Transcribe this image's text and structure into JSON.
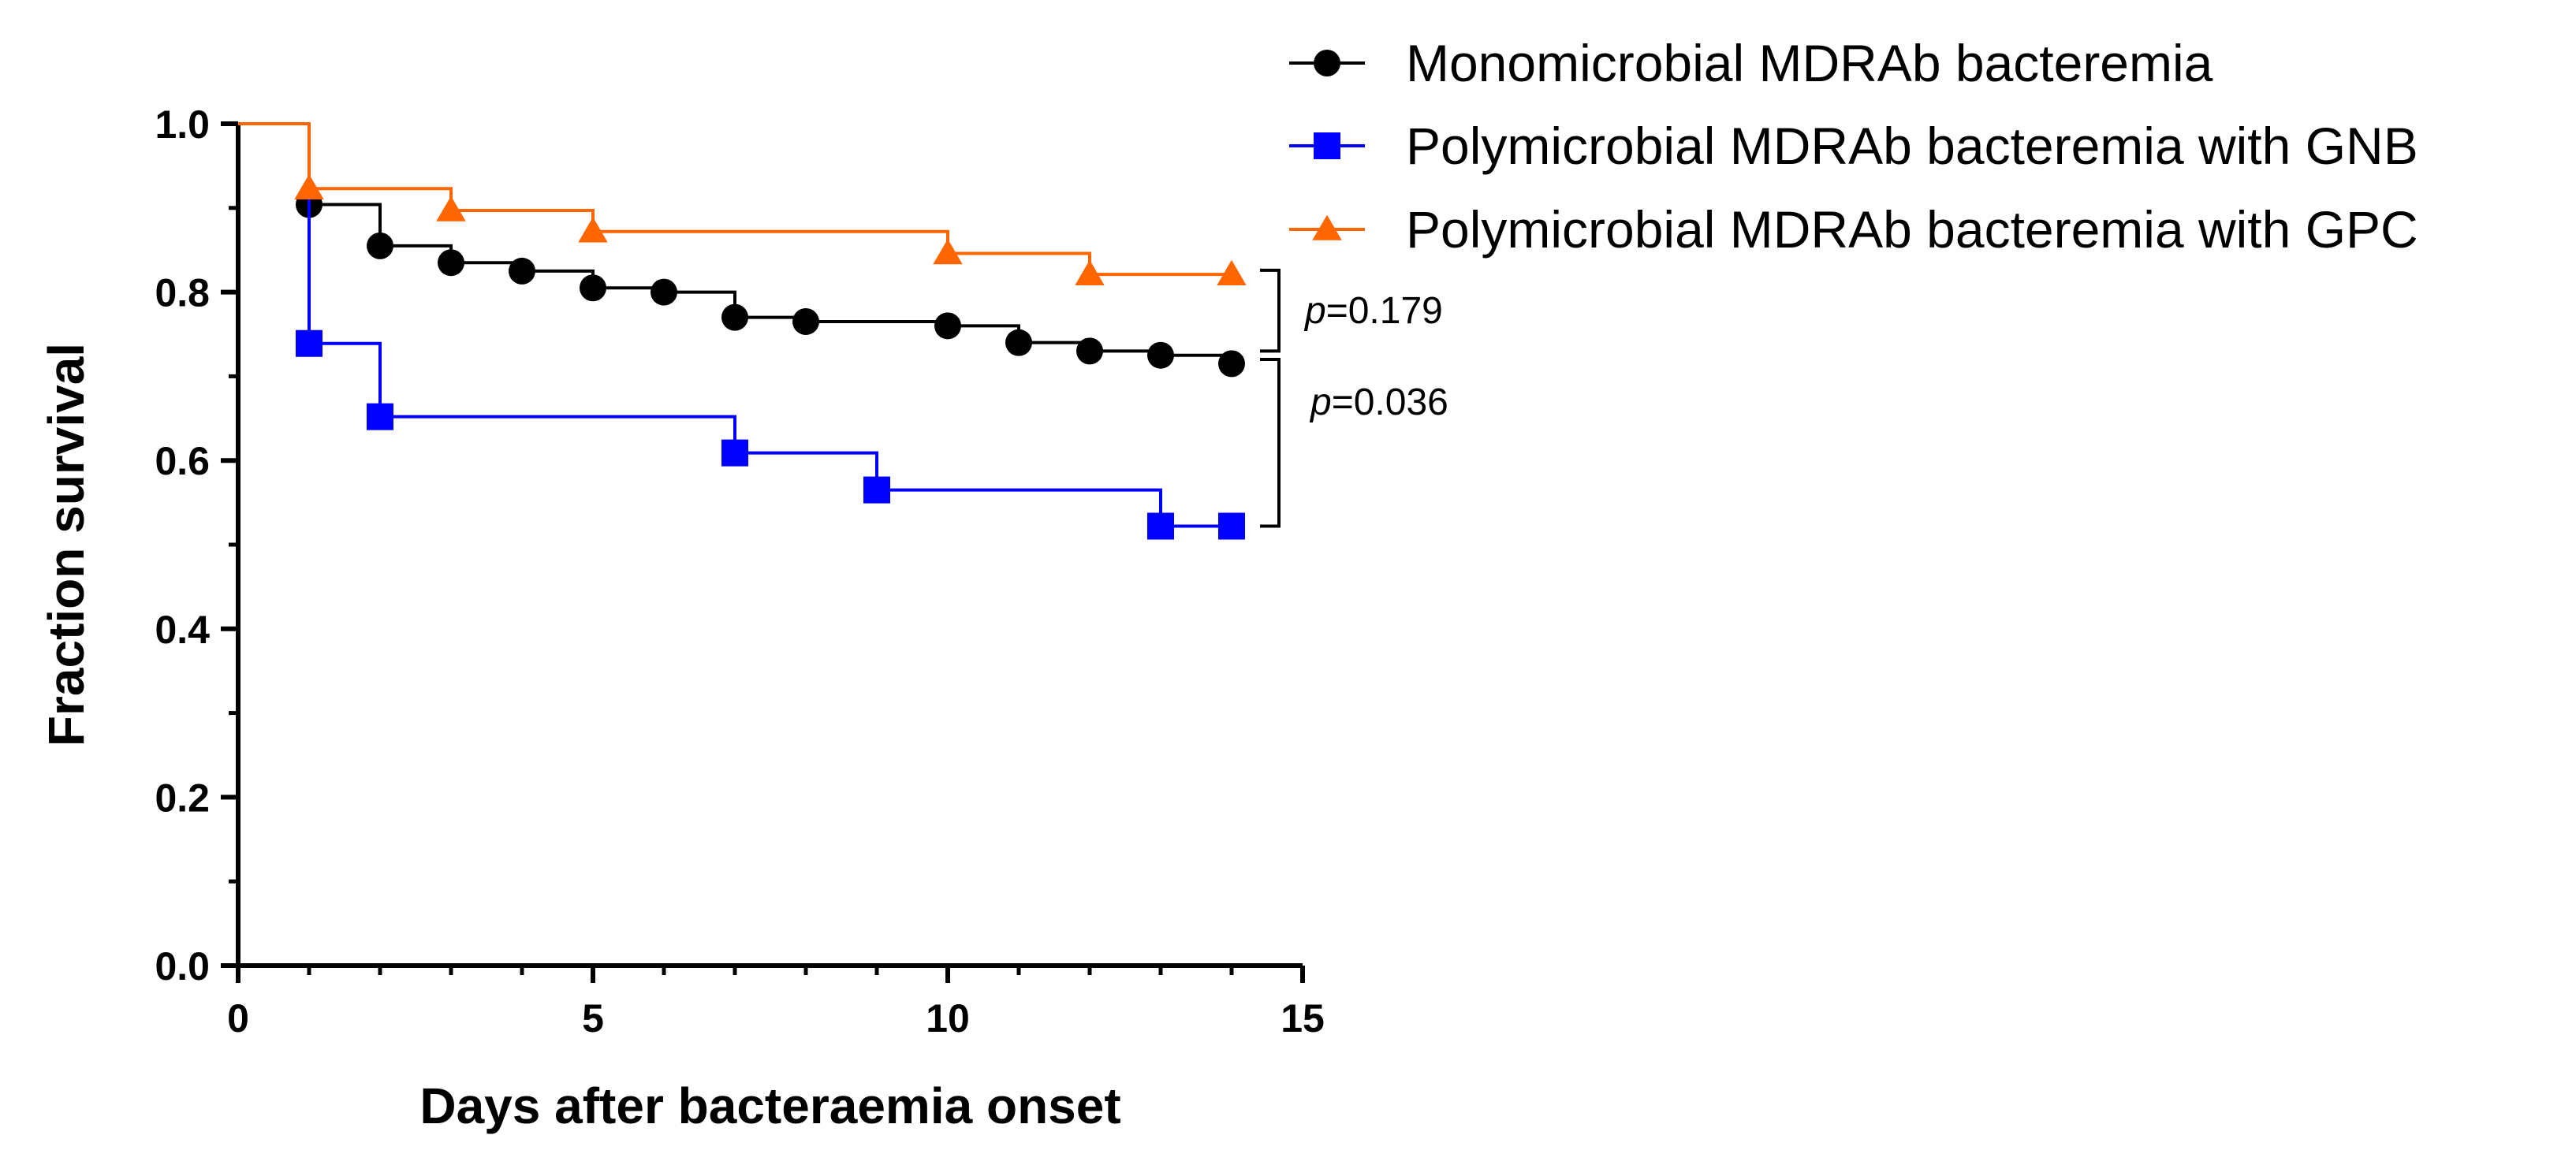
{
  "chart_data": {
    "type": "line",
    "subtype": "kaplan-meier",
    "title": "",
    "xlabel": "Days after bacteraemia onset",
    "ylabel": "Fraction survival",
    "xlim": [
      0,
      15
    ],
    "ylim": [
      0.0,
      1.0
    ],
    "xticks": [
      0,
      5,
      10,
      15
    ],
    "xtick_labels": [
      "0",
      "5",
      "10",
      "15"
    ],
    "yticks": [
      0.0,
      0.2,
      0.4,
      0.6,
      0.8,
      1.0
    ],
    "ytick_labels": [
      "0.0",
      "0.2",
      "0.4",
      "0.6",
      "0.8",
      "1.0"
    ],
    "grid": false,
    "legend_position": "top-right",
    "series": [
      {
        "name": "Monomicrobial MDRAb bacteremia",
        "color": "#000000",
        "marker": "circle",
        "x": [
          0,
          1,
          2,
          3,
          4,
          5,
          6,
          7,
          8,
          10,
          11,
          12,
          13,
          14
        ],
        "y": [
          1.0,
          0.904,
          0.855,
          0.835,
          0.825,
          0.805,
          0.8,
          0.77,
          0.765,
          0.76,
          0.74,
          0.73,
          0.725,
          0.715
        ],
        "markers_at": [
          1,
          2,
          3,
          4,
          5,
          6,
          7,
          8,
          10,
          11,
          12,
          13,
          14
        ]
      },
      {
        "name": "Polymicrobial MDRAb bacteremia with GNB",
        "color": "#0000ff",
        "marker": "square",
        "x": [
          0,
          1,
          2,
          7,
          9,
          13,
          14
        ],
        "y": [
          1.0,
          0.739,
          0.652,
          0.609,
          0.565,
          0.522,
          0.522
        ],
        "markers_at": [
          1,
          2,
          7,
          9,
          13,
          14
        ]
      },
      {
        "name": "Polymicrobial MDRAb bacteremia with GPC",
        "color": "#ff6600",
        "marker": "triangle",
        "x": [
          0,
          1,
          3,
          5,
          10,
          12,
          14
        ],
        "y": [
          1.0,
          0.923,
          0.897,
          0.872,
          0.846,
          0.821,
          0.821
        ],
        "markers_at": [
          1,
          3,
          5,
          10,
          12,
          14
        ]
      }
    ],
    "annotations": [
      {
        "prefix": "p",
        "text": "=0.179",
        "between": [
          "Polymicrobial MDRAb bacteremia with GPC",
          "Monomicrobial MDRAb bacteremia"
        ],
        "y_range": [
          0.73,
          0.826
        ]
      },
      {
        "prefix": "p",
        "text": "=0.036",
        "between": [
          "Monomicrobial MDRAb bacteremia",
          "Polymicrobial MDRAb bacteremia with GNB"
        ],
        "y_range": [
          0.522,
          0.72
        ]
      }
    ]
  }
}
